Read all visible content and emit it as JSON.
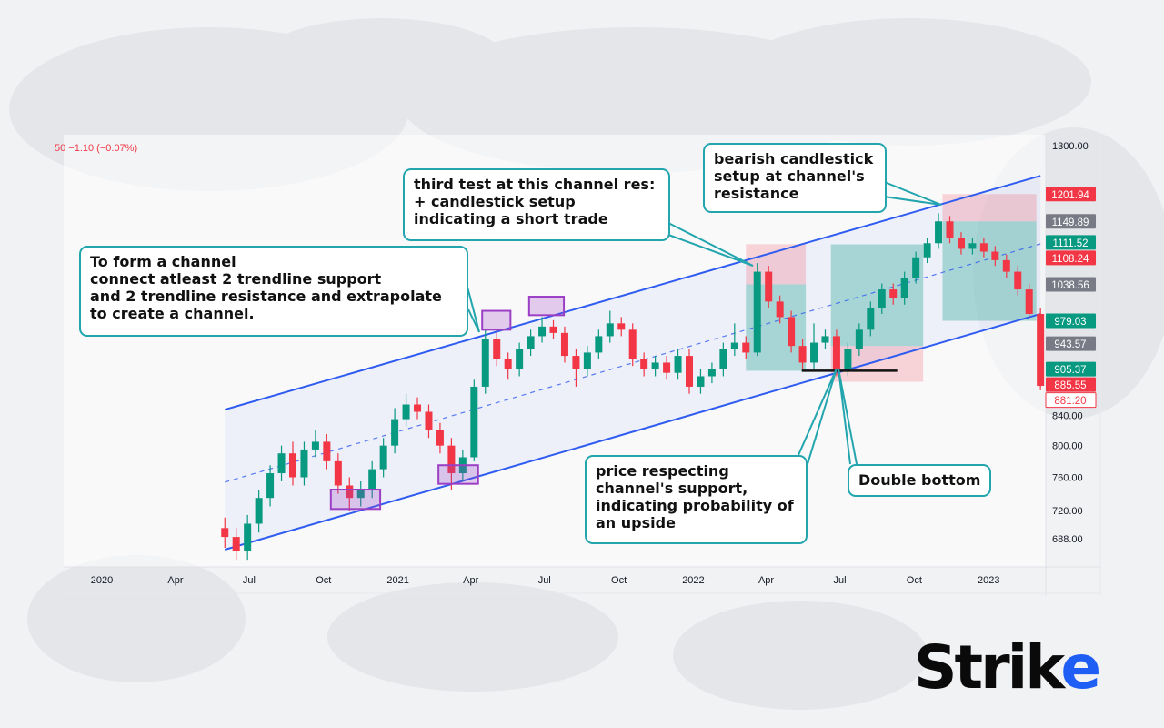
{
  "header": {
    "ticker_change": "50  −1.10 (−0.07%)"
  },
  "brand": {
    "logo_text": "Strike"
  },
  "colors": {
    "up": "#089981",
    "down": "#f23645",
    "channel": "#2f5cf0",
    "callout_border": "#22a5ad",
    "highlight": "#9b3fc4",
    "neutral_tag": "#787b86"
  },
  "chart_data": {
    "type": "candlestick",
    "y_scale": "log",
    "ylim": [
      660,
      1300
    ],
    "xlim": [
      "2020-01-01",
      "2023-03-20"
    ],
    "candle_start": "2020-06-01",
    "candle_interval_days": 14,
    "candles_ohlc": [
      [
        700,
        712,
        678,
        690
      ],
      [
        690,
        700,
        665,
        675
      ],
      [
        675,
        715,
        665,
        705
      ],
      [
        705,
        745,
        695,
        735
      ],
      [
        735,
        775,
        725,
        765
      ],
      [
        765,
        800,
        755,
        790
      ],
      [
        790,
        805,
        750,
        760
      ],
      [
        760,
        805,
        750,
        795
      ],
      [
        795,
        820,
        785,
        805
      ],
      [
        805,
        815,
        770,
        780
      ],
      [
        780,
        790,
        740,
        750
      ],
      [
        750,
        760,
        720,
        735
      ],
      [
        735,
        755,
        725,
        745
      ],
      [
        745,
        780,
        735,
        770
      ],
      [
        770,
        810,
        760,
        800
      ],
      [
        800,
        850,
        790,
        835
      ],
      [
        835,
        870,
        825,
        855
      ],
      [
        855,
        865,
        835,
        845
      ],
      [
        845,
        855,
        810,
        820
      ],
      [
        820,
        830,
        790,
        800
      ],
      [
        800,
        810,
        745,
        765
      ],
      [
        765,
        795,
        755,
        785
      ],
      [
        785,
        890,
        780,
        880
      ],
      [
        880,
        965,
        870,
        950
      ],
      [
        950,
        960,
        910,
        920
      ],
      [
        920,
        930,
        890,
        905
      ],
      [
        905,
        945,
        895,
        935
      ],
      [
        935,
        965,
        925,
        955
      ],
      [
        955,
        985,
        945,
        970
      ],
      [
        970,
        980,
        950,
        960
      ],
      [
        960,
        970,
        915,
        925
      ],
      [
        925,
        935,
        880,
        905
      ],
      [
        905,
        940,
        895,
        930
      ],
      [
        930,
        965,
        920,
        955
      ],
      [
        955,
        995,
        945,
        975
      ],
      [
        975,
        985,
        955,
        965
      ],
      [
        965,
        975,
        910,
        920
      ],
      [
        920,
        930,
        895,
        905
      ],
      [
        905,
        925,
        895,
        915
      ],
      [
        915,
        925,
        890,
        900
      ],
      [
        900,
        935,
        890,
        925
      ],
      [
        925,
        935,
        870,
        880
      ],
      [
        880,
        905,
        870,
        895
      ],
      [
        895,
        915,
        885,
        905
      ],
      [
        905,
        945,
        895,
        935
      ],
      [
        935,
        975,
        925,
        945
      ],
      [
        945,
        955,
        920,
        930
      ],
      [
        930,
        1075,
        925,
        1060
      ],
      [
        1060,
        1070,
        1000,
        1010
      ],
      [
        1010,
        1020,
        975,
        985
      ],
      [
        985,
        995,
        930,
        940
      ],
      [
        940,
        950,
        905,
        915
      ],
      [
        915,
        975,
        905,
        945
      ],
      [
        945,
        965,
        935,
        955
      ],
      [
        955,
        965,
        895,
        905
      ],
      [
        905,
        945,
        895,
        935
      ],
      [
        935,
        975,
        925,
        965
      ],
      [
        965,
        1010,
        955,
        1000
      ],
      [
        1000,
        1040,
        990,
        1030
      ],
      [
        1030,
        1040,
        1005,
        1015
      ],
      [
        1015,
        1060,
        1005,
        1050
      ],
      [
        1050,
        1095,
        1040,
        1085
      ],
      [
        1085,
        1120,
        1075,
        1110
      ],
      [
        1110,
        1165,
        1100,
        1150
      ],
      [
        1150,
        1160,
        1110,
        1120
      ],
      [
        1120,
        1130,
        1090,
        1100
      ],
      [
        1100,
        1120,
        1090,
        1110
      ],
      [
        1110,
        1120,
        1085,
        1095
      ],
      [
        1095,
        1105,
        1070,
        1080
      ],
      [
        1080,
        1090,
        1050,
        1060
      ],
      [
        1060,
        1070,
        1020,
        1030
      ],
      [
        1030,
        1040,
        985,
        990
      ],
      [
        990,
        1000,
        875,
        881.2
      ]
    ],
    "y_ticks": [
      "1300.00",
      "840.00",
      "800.00",
      "760.00",
      "720.00",
      "688.00"
    ],
    "x_ticks": [
      {
        "label": "2020",
        "date": "2020-01-01"
      },
      {
        "label": "Apr",
        "date": "2020-04-01"
      },
      {
        "label": "Jul",
        "date": "2020-07-01"
      },
      {
        "label": "Oct",
        "date": "2020-10-01"
      },
      {
        "label": "2021",
        "date": "2021-01-01"
      },
      {
        "label": "Apr",
        "date": "2021-04-01"
      },
      {
        "label": "Jul",
        "date": "2021-07-01"
      },
      {
        "label": "Oct",
        "date": "2021-10-01"
      },
      {
        "label": "2022",
        "date": "2022-01-01"
      },
      {
        "label": "Apr",
        "date": "2022-04-01"
      },
      {
        "label": "Jul",
        "date": "2022-07-01"
      },
      {
        "label": "Oct",
        "date": "2022-10-01"
      },
      {
        "label": "2023",
        "date": "2023-01-01"
      }
    ],
    "price_tags": [
      {
        "value": "1201.94",
        "style": "down"
      },
      {
        "value": "1149.89",
        "style": "neutral"
      },
      {
        "value": "1111.52",
        "style": "up"
      },
      {
        "value": "1108.24",
        "style": "down"
      },
      {
        "value": "1038.56",
        "style": "neutral"
      },
      {
        "value": "979.03",
        "style": "up"
      },
      {
        "value": "943.57",
        "style": "neutral"
      },
      {
        "value": "905.37",
        "style": "up"
      },
      {
        "value": "885.55",
        "style": "down"
      },
      {
        "value": "881.20",
        "style": "last"
      }
    ],
    "channel": {
      "start": "2020-06-01",
      "end": "2023-03-06",
      "upper": [
        848,
        1238
      ],
      "middle": [
        754,
        1109
      ],
      "lower": [
        676,
        990
      ]
    },
    "positions": [
      {
        "type": "short",
        "start": "2022-03-07",
        "end": "2022-05-20",
        "stop": 1108.24,
        "entry": 1038.56,
        "target": 903
      },
      {
        "type": "long",
        "start": "2022-06-20",
        "end": "2022-10-12",
        "target": 1108,
        "entry": 940,
        "stop": 887
      },
      {
        "type": "short",
        "start": "2022-11-05",
        "end": "2023-03-01",
        "stop": 1201.94,
        "entry": 1149.89,
        "target": 979.03
      }
    ],
    "touch_highlights": [
      {
        "start": "2020-10-10",
        "end": "2020-12-10",
        "high": 745,
        "low": 722
      },
      {
        "start": "2021-02-20",
        "end": "2021-04-10",
        "high": 775,
        "low": 752
      },
      {
        "start": "2021-04-15",
        "end": "2021-05-20",
        "high": 995,
        "low": 965
      },
      {
        "start": "2021-06-12",
        "end": "2021-07-25",
        "high": 1018,
        "low": 988
      }
    ],
    "double_bottom_line": {
      "start": "2022-05-15",
      "end": "2022-09-10",
      "price": 903
    },
    "annotations": [
      {
        "lines": [
          "To form a channel",
          "connect atleast 2 trendline support",
          "and 2 trendline resistance and extrapolate",
          "to create a channel."
        ]
      },
      {
        "lines": [
          "third test at this channel res:",
          "+ candlestick setup",
          "indicating a short trade"
        ]
      },
      {
        "lines": [
          "bearish candlestick",
          "setup at channel's",
          "resistance"
        ]
      },
      {
        "lines": [
          "price respecting",
          "channel's support,",
          "indicating probability of",
          "an upside"
        ]
      },
      {
        "lines": [
          "Double bottom"
        ]
      }
    ]
  }
}
